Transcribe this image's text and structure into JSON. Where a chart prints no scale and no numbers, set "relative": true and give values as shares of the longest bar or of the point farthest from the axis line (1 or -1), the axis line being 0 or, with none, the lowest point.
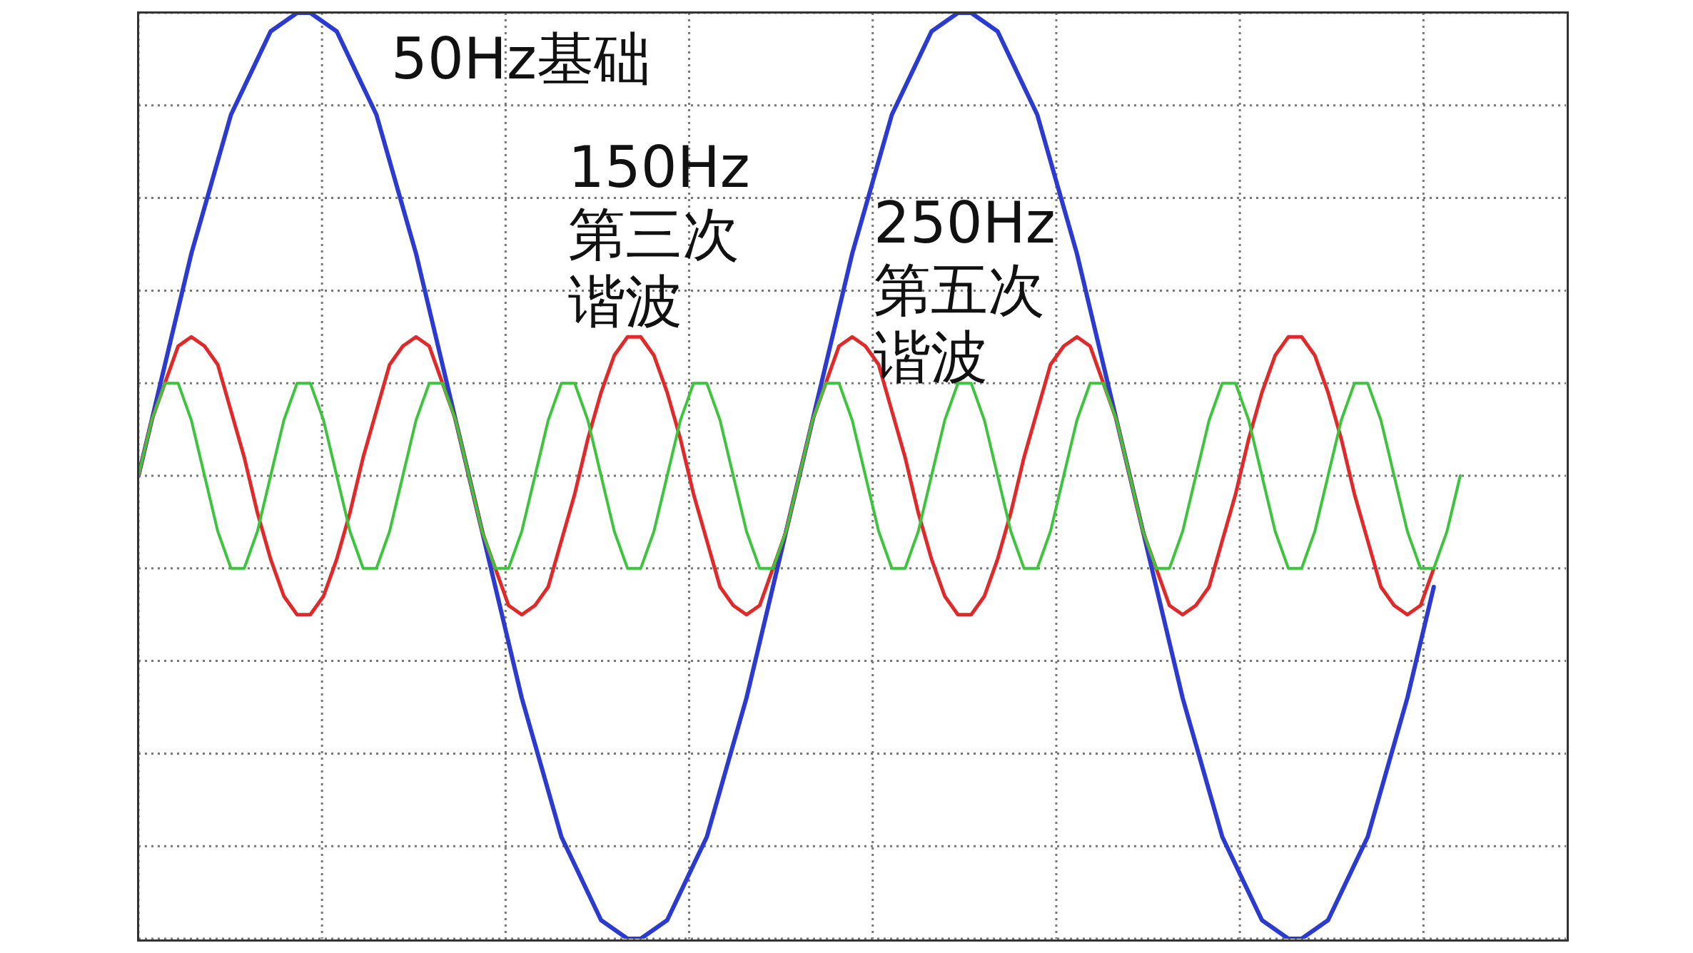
{
  "chart_data": {
    "type": "line",
    "relative": true,
    "grid": true,
    "annotations": [
      "50Hz基础",
      "150Hz第三次谐波",
      "250Hz第五次谐波"
    ],
    "categories": [
      null,
      null,
      null,
      null,
      null,
      null,
      null,
      null,
      null,
      null,
      null,
      null,
      null,
      null,
      null,
      null,
      null,
      null,
      null,
      null,
      null,
      null,
      null,
      null,
      null,
      null,
      null,
      null,
      null,
      null,
      null,
      null,
      null,
      null,
      null,
      null,
      null,
      null,
      null,
      null,
      null,
      null,
      null,
      null,
      null,
      null,
      null,
      null,
      null,
      null,
      null,
      null,
      null,
      null,
      null,
      null,
      null,
      null,
      null,
      null,
      null,
      null,
      null,
      null,
      null,
      null,
      null,
      null,
      null,
      null,
      null,
      null,
      null,
      null,
      null,
      null,
      null,
      null,
      null,
      null,
      null,
      null,
      null,
      null,
      null,
      null,
      null,
      null,
      null,
      null,
      null,
      null,
      null,
      null,
      null,
      null,
      null,
      null,
      null,
      null,
      null,
      null,
      null,
      null,
      null,
      null,
      null,
      null,
      null
    ],
    "series": [
      {
        "color": "#2b3bd0",
        "values": [
          0.5,
          0.56,
          0.62,
          0.68,
          0.74,
          0.79,
          0.84,
          0.89,
          0.92,
          0.95,
          0.98,
          0.99,
          1,
          1,
          0.99,
          0.98,
          0.95,
          0.92,
          0.89,
          0.84,
          0.79,
          0.74,
          0.68,
          0.62,
          0.56,
          0.5,
          0.44,
          0.38,
          0.32,
          0.26,
          0.21,
          0.16,
          0.11,
          0.08,
          0.05,
          0.02,
          0.01,
          0,
          0,
          0.01,
          0.02,
          0.05,
          0.08,
          0.11,
          0.16,
          0.21,
          0.26,
          0.32,
          0.38,
          0.44,
          0.5,
          0.56,
          0.62,
          0.68,
          0.74,
          0.79,
          0.84,
          0.89,
          0.92,
          0.95,
          0.98,
          0.99,
          1,
          1,
          0.99,
          0.98,
          0.95,
          0.92,
          0.89,
          0.84,
          0.79,
          0.74,
          0.68,
          0.62,
          0.56,
          0.5,
          0.44,
          0.38,
          0.32,
          0.26,
          0.21,
          0.16,
          0.11,
          0.08,
          0.05,
          0.02,
          0.01,
          0,
          0,
          0.01,
          0.02,
          0.05,
          0.08,
          0.11,
          0.16,
          0.21,
          0.26,
          0.32,
          0.38,
          null,
          null,
          null,
          null,
          null,
          null,
          null,
          null,
          null,
          null
        ]
      },
      {
        "color": "#e02a2a",
        "values": [
          0.5,
          0.56,
          0.6,
          0.64,
          0.65,
          0.64,
          0.62,
          0.57,
          0.52,
          0.46,
          0.41,
          0.37,
          0.35,
          0.35,
          0.37,
          0.41,
          0.46,
          0.52,
          0.57,
          0.62,
          0.64,
          0.65,
          0.64,
          0.6,
          0.56,
          0.5,
          0.44,
          0.4,
          0.36,
          0.35,
          0.36,
          0.38,
          0.43,
          0.48,
          0.54,
          0.59,
          0.63,
          0.65,
          0.65,
          0.63,
          0.59,
          0.54,
          0.48,
          0.43,
          0.38,
          0.36,
          0.35,
          0.36,
          0.4,
          0.44,
          0.5,
          0.56,
          0.6,
          0.64,
          0.65,
          0.64,
          0.62,
          0.57,
          0.52,
          0.46,
          0.41,
          0.37,
          0.35,
          0.35,
          0.37,
          0.41,
          0.46,
          0.52,
          0.57,
          0.62,
          0.64,
          0.65,
          0.64,
          0.6,
          0.56,
          0.5,
          0.44,
          0.4,
          0.36,
          0.35,
          0.36,
          0.38,
          0.43,
          0.48,
          0.54,
          0.59,
          0.63,
          0.65,
          0.65,
          0.63,
          0.59,
          0.54,
          0.48,
          0.43,
          0.38,
          0.36,
          0.35,
          0.36,
          0.4,
          null,
          null,
          null,
          null,
          null,
          null,
          null,
          null,
          null,
          null
        ]
      },
      {
        "color": "#3cc43c",
        "values": [
          0.5,
          0.56,
          0.6,
          0.6,
          0.56,
          0.5,
          0.44,
          0.4,
          0.4,
          0.44,
          0.5,
          0.56,
          0.6,
          0.6,
          0.56,
          0.5,
          0.44,
          0.4,
          0.4,
          0.44,
          0.5,
          0.56,
          0.6,
          0.6,
          0.56,
          0.5,
          0.44,
          0.4,
          0.4,
          0.44,
          0.5,
          0.56,
          0.6,
          0.6,
          0.56,
          0.5,
          0.44,
          0.4,
          0.4,
          0.44,
          0.5,
          0.56,
          0.6,
          0.6,
          0.56,
          0.5,
          0.44,
          0.4,
          0.4,
          0.44,
          0.5,
          0.56,
          0.6,
          0.6,
          0.56,
          0.5,
          0.44,
          0.4,
          0.4,
          0.44,
          0.5,
          0.56,
          0.6,
          0.6,
          0.56,
          0.5,
          0.44,
          0.4,
          0.4,
          0.44,
          0.5,
          0.56,
          0.6,
          0.6,
          0.56,
          0.5,
          0.44,
          0.4,
          0.4,
          0.44,
          0.5,
          0.56,
          0.6,
          0.6,
          0.56,
          0.5,
          0.44,
          0.4,
          0.4,
          0.44,
          0.5,
          0.56,
          0.6,
          0.6,
          0.56,
          0.5,
          0.44,
          0.4,
          0.4,
          0.44,
          0.5,
          null,
          null,
          null,
          null,
          null,
          null,
          null,
          null
        ]
      }
    ]
  }
}
